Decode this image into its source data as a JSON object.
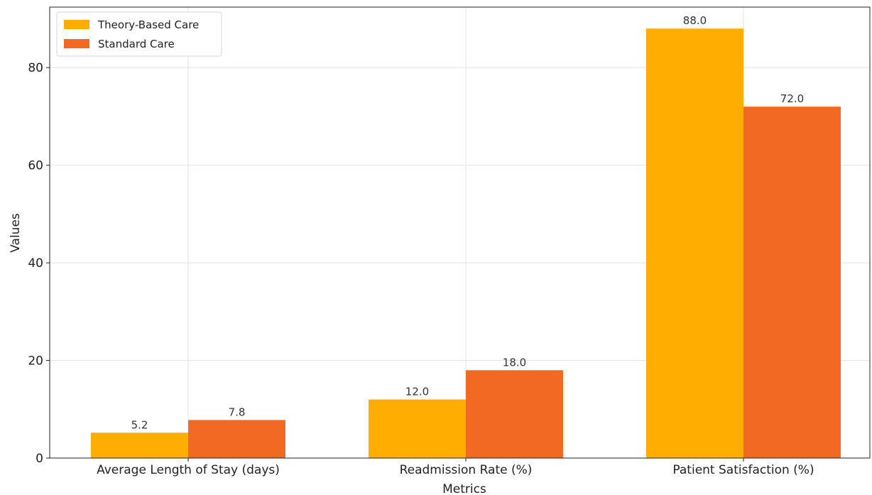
{
  "chart_data": {
    "type": "bar",
    "categories": [
      "Average Length of Stay (days)",
      "Readmission Rate (%)",
      "Patient Satisfaction (%)"
    ],
    "series": [
      {
        "name": "Theory-Based Care",
        "values": [
          5.2,
          12.0,
          88.0
        ],
        "color": "#FFAD00"
      },
      {
        "name": "Standard Care",
        "values": [
          7.8,
          18.0,
          72.0
        ],
        "color": "#F26A21"
      }
    ],
    "data_labels": [
      [
        "5.2",
        "12.0",
        "88.0"
      ],
      [
        "7.8",
        "18.0",
        "72.0"
      ]
    ],
    "yticks": [
      0,
      20,
      40,
      60,
      80
    ],
    "ytick_labels": [
      "0",
      "20",
      "40",
      "60",
      "80"
    ],
    "ylim": [
      0,
      92.4
    ],
    "xlabel": "Metrics",
    "ylabel": "Values",
    "legend_position": "top-left",
    "grid": true
  }
}
